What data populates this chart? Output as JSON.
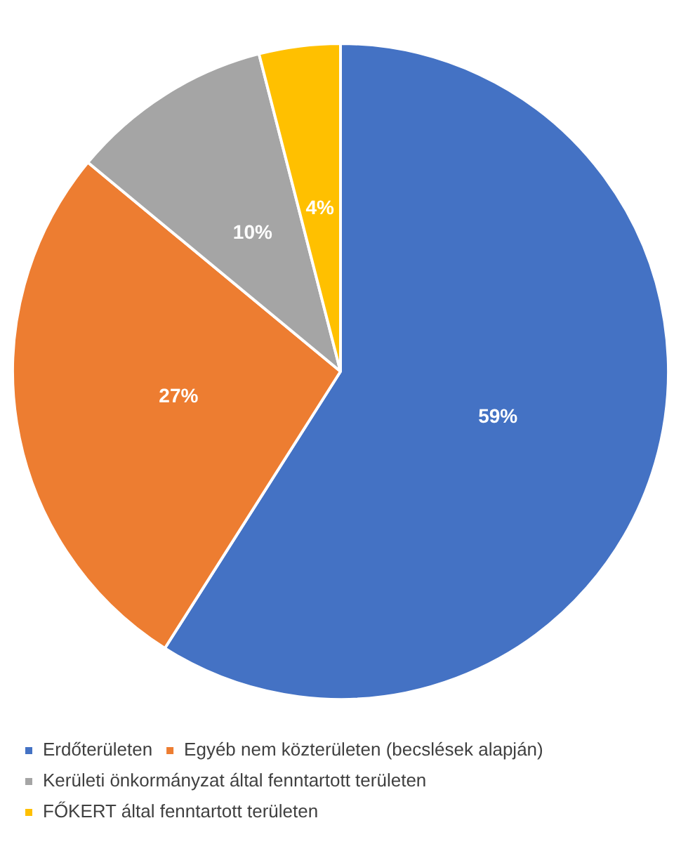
{
  "chart_data": {
    "type": "pie",
    "categories": [
      "Erdőterületen",
      "Egyéb nem közterületen (becslések alapján)",
      "Kerületi önkormányzat által fenntartott területen",
      "FŐKERT által fenntartott területen"
    ],
    "values": [
      59,
      27,
      10,
      4
    ],
    "colors": [
      "#4472c4",
      "#ed7d31",
      "#a5a5a5",
      "#ffc000"
    ],
    "value_labels": [
      "59%",
      "27%",
      "10%",
      "4%"
    ],
    "legend": "bottom"
  }
}
